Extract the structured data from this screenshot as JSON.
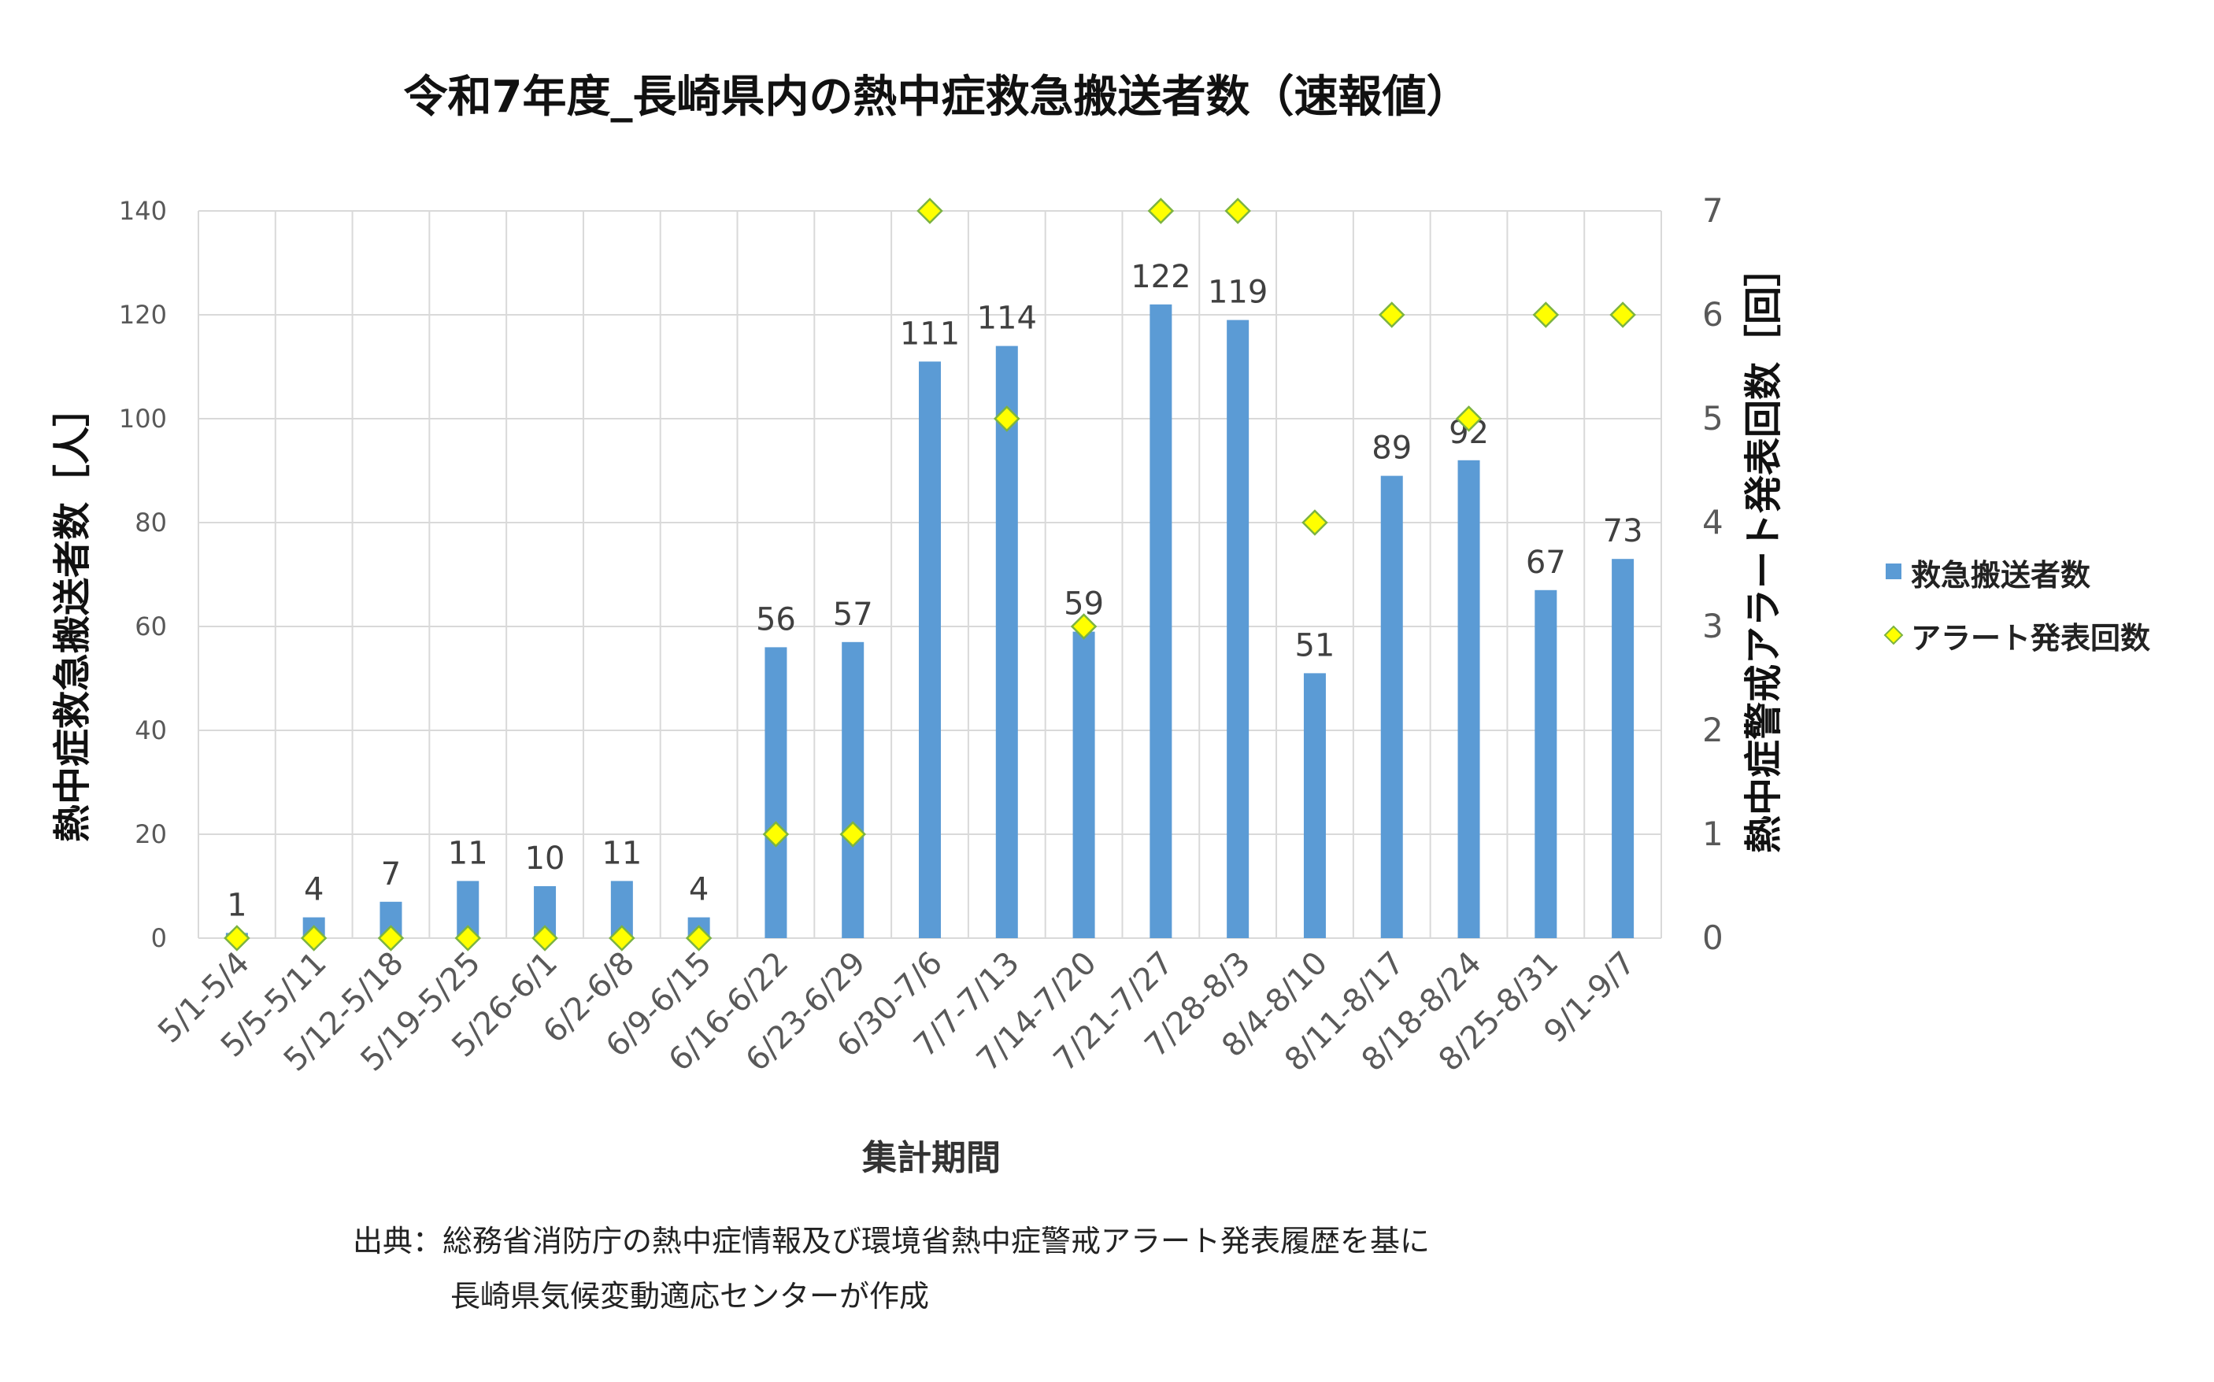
{
  "title": "令和7年度_長崎県内の熱中症救急搬送者数（速報値）",
  "source_lines": [
    "出典：総務省消防庁の熱中症情報及び環境省熱中症警戒アラート発表履歴を基に",
    "長崎県気候変動適応センターが作成"
  ],
  "colors": {
    "bar": "#5B9BD5",
    "marker_fill": "#FFFF00",
    "marker_stroke": "#7CB342",
    "grid": "#D9D9D9"
  },
  "chart_data": {
    "type": "bar",
    "xlabel": "集計期間",
    "ylabel": "熱中症救急搬送者数［人］",
    "y2label": "熱中症警戒アラート発表回数［回］",
    "ylim": [
      0,
      140
    ],
    "yticks": [
      0,
      20,
      40,
      60,
      80,
      100,
      120,
      140
    ],
    "y2lim": [
      0,
      7
    ],
    "y2ticks": [
      0,
      1,
      2,
      3,
      4,
      5,
      6,
      7
    ],
    "categories": [
      "5/1-5/4",
      "5/5-5/11",
      "5/12-5/18",
      "5/19-5/25",
      "5/26-6/1",
      "6/2-6/8",
      "6/9-6/15",
      "6/16-6/22",
      "6/23-6/29",
      "6/30-7/6",
      "7/7-7/13",
      "7/14-7/20",
      "7/21-7/27",
      "7/28-8/3",
      "8/4-8/10",
      "8/11-8/17",
      "8/18-8/24",
      "8/25-8/31",
      "9/1-9/7"
    ],
    "series": [
      {
        "name": "救急搬送者数",
        "kind": "bar",
        "axis": "left",
        "values": [
          1,
          4,
          7,
          11,
          10,
          11,
          4,
          56,
          57,
          111,
          114,
          59,
          122,
          119,
          51,
          89,
          92,
          67,
          73
        ]
      },
      {
        "name": "アラート発表回数",
        "kind": "scatter",
        "axis": "right",
        "values": [
          0,
          0,
          0,
          0,
          0,
          0,
          0,
          1,
          1,
          7,
          5,
          3,
          7,
          7,
          4,
          6,
          5,
          6,
          6
        ]
      }
    ],
    "legend": "right",
    "grid": true
  }
}
